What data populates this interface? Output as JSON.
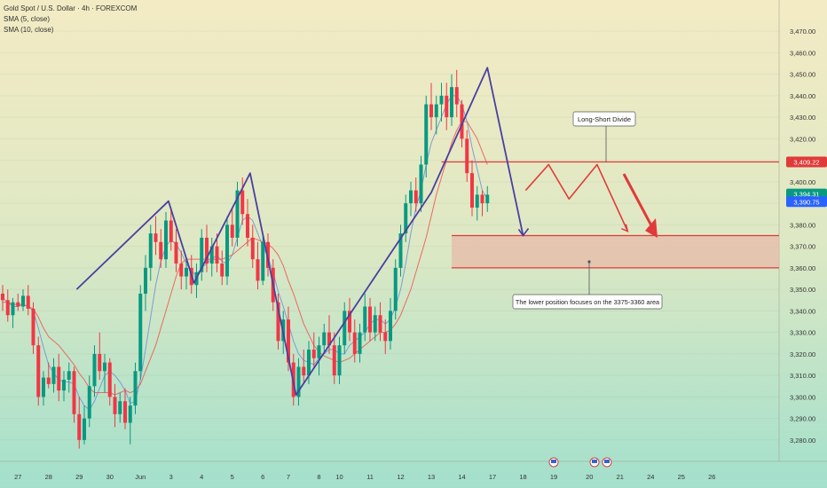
{
  "legend": {
    "symbol": "Gold Spot / U.S. Dollar · 4h · FOREXCOM",
    "sma5": "SMA (5, close)",
    "sma10": "SMA (10, close)"
  },
  "colors": {
    "bull": "#089981",
    "bear": "#f23645",
    "sma5": "#6f8fd8",
    "sma10": "#ef5350",
    "wave": "#4a3fa0",
    "projection": "#e03a3a",
    "divide_line": "#e03a3a",
    "zone_fill": "#e7b9a8",
    "zone_border": "#e03a3a",
    "bg_top": "#f3ebc4",
    "bg_bottom": "#a3e0cc"
  },
  "chart_data": {
    "type": "candlestick",
    "title": "Gold Spot / U.S. Dollar · 4h · FOREXCOM",
    "ylim": [
      3275,
      3475
    ],
    "y_ticks": [
      3280,
      3290,
      3300,
      3310,
      3320,
      3330,
      3340,
      3350,
      3360,
      3370,
      3380,
      3390,
      3400,
      3410,
      3420,
      3430,
      3440,
      3450,
      3460,
      3470
    ],
    "y_tick_labels": [
      "3,280.00",
      "3,290.00",
      "3,300.00",
      "3,310.00",
      "3,320.00",
      "3,330.00",
      "3,340.00",
      "3,350.00",
      "3,360.00",
      "3,370.00",
      "3,380.00",
      "3,390.00",
      "3,400.00",
      "3,410.00",
      "3,420.00",
      "3,430.00",
      "3,440.00",
      "3,450.00",
      "3,460.00",
      "3,470.00"
    ],
    "x_labels": [
      {
        "label": "27",
        "idx": 3
      },
      {
        "label": "28",
        "idx": 9
      },
      {
        "label": "29",
        "idx": 15
      },
      {
        "label": "30",
        "idx": 21
      },
      {
        "label": "Jun",
        "idx": 27
      },
      {
        "label": "3",
        "idx": 33
      },
      {
        "label": "4",
        "idx": 39
      },
      {
        "label": "5",
        "idx": 45
      },
      {
        "label": "6",
        "idx": 51
      },
      {
        "label": "7",
        "idx": 56
      },
      {
        "label": "8",
        "idx": 62
      },
      {
        "label": "10",
        "idx": 66
      },
      {
        "label": "11",
        "idx": 72
      },
      {
        "label": "12",
        "idx": 78
      },
      {
        "label": "13",
        "idx": 84
      },
      {
        "label": "14",
        "idx": 90
      },
      {
        "label": "17",
        "idx": 96
      },
      {
        "label": "18",
        "idx": 102
      },
      {
        "label": "19",
        "idx": 108
      },
      {
        "label": "20",
        "idx": 115
      },
      {
        "label": "21",
        "idx": 121
      },
      {
        "label": "24",
        "idx": 127
      },
      {
        "label": "25",
        "idx": 133
      },
      {
        "label": "26",
        "idx": 139
      }
    ],
    "candles": [
      [
        3348,
        3352,
        3340,
        3345
      ],
      [
        3345,
        3350,
        3335,
        3338
      ],
      [
        3338,
        3346,
        3332,
        3344
      ],
      [
        3344,
        3348,
        3340,
        3342
      ],
      [
        3342,
        3350,
        3340,
        3347
      ],
      [
        3347,
        3352,
        3338,
        3341
      ],
      [
        3341,
        3344,
        3320,
        3324
      ],
      [
        3324,
        3328,
        3296,
        3300
      ],
      [
        3300,
        3312,
        3296,
        3309
      ],
      [
        3309,
        3316,
        3304,
        3306
      ],
      [
        3306,
        3318,
        3302,
        3314
      ],
      [
        3314,
        3320,
        3298,
        3303
      ],
      [
        3303,
        3312,
        3298,
        3308
      ],
      [
        3308,
        3316,
        3302,
        3312
      ],
      [
        3312,
        3314,
        3288,
        3292
      ],
      [
        3292,
        3300,
        3276,
        3280
      ],
      [
        3280,
        3296,
        3278,
        3290
      ],
      [
        3290,
        3310,
        3286,
        3305
      ],
      [
        3305,
        3324,
        3300,
        3320
      ],
      [
        3320,
        3330,
        3308,
        3312
      ],
      [
        3312,
        3320,
        3302,
        3316
      ],
      [
        3316,
        3318,
        3296,
        3300
      ],
      [
        3300,
        3306,
        3286,
        3292
      ],
      [
        3292,
        3302,
        3288,
        3298
      ],
      [
        3298,
        3304,
        3285,
        3288
      ],
      [
        3288,
        3300,
        3278,
        3296
      ],
      [
        3296,
        3316,
        3292,
        3312
      ],
      [
        3312,
        3352,
        3308,
        3348
      ],
      [
        3348,
        3366,
        3340,
        3360
      ],
      [
        3360,
        3380,
        3354,
        3376
      ],
      [
        3376,
        3384,
        3366,
        3372
      ],
      [
        3372,
        3378,
        3360,
        3364
      ],
      [
        3364,
        3386,
        3360,
        3382
      ],
      [
        3382,
        3388,
        3368,
        3372
      ],
      [
        3372,
        3378,
        3358,
        3362
      ],
      [
        3362,
        3368,
        3350,
        3356
      ],
      [
        3356,
        3364,
        3350,
        3360
      ],
      [
        3360,
        3366,
        3348,
        3352
      ],
      [
        3352,
        3362,
        3346,
        3358
      ],
      [
        3358,
        3378,
        3354,
        3374
      ],
      [
        3374,
        3380,
        3358,
        3362
      ],
      [
        3362,
        3374,
        3356,
        3370
      ],
      [
        3370,
        3376,
        3358,
        3362
      ],
      [
        3362,
        3368,
        3352,
        3356
      ],
      [
        3356,
        3384,
        3352,
        3380
      ],
      [
        3380,
        3388,
        3370,
        3374
      ],
      [
        3374,
        3400,
        3370,
        3396
      ],
      [
        3396,
        3402,
        3380,
        3385
      ],
      [
        3385,
        3392,
        3370,
        3374
      ],
      [
        3374,
        3380,
        3360,
        3364
      ],
      [
        3364,
        3372,
        3350,
        3354
      ],
      [
        3354,
        3376,
        3352,
        3372
      ],
      [
        3372,
        3376,
        3356,
        3360
      ],
      [
        3360,
        3364,
        3340,
        3344
      ],
      [
        3344,
        3348,
        3322,
        3326
      ],
      [
        3326,
        3340,
        3320,
        3336
      ],
      [
        3336,
        3342,
        3312,
        3316
      ],
      [
        3316,
        3320,
        3296,
        3300
      ],
      [
        3300,
        3318,
        3296,
        3314
      ],
      [
        3314,
        3322,
        3306,
        3310
      ],
      [
        3310,
        3326,
        3306,
        3322
      ],
      [
        3322,
        3330,
        3314,
        3318
      ],
      [
        3318,
        3328,
        3310,
        3324
      ],
      [
        3324,
        3334,
        3320,
        3330
      ],
      [
        3330,
        3338,
        3320,
        3324
      ],
      [
        3324,
        3330,
        3306,
        3310
      ],
      [
        3310,
        3328,
        3306,
        3324
      ],
      [
        3324,
        3344,
        3320,
        3340
      ],
      [
        3340,
        3346,
        3326,
        3330
      ],
      [
        3330,
        3336,
        3316,
        3320
      ],
      [
        3320,
        3334,
        3316,
        3330
      ],
      [
        3330,
        3348,
        3326,
        3342
      ],
      [
        3342,
        3346,
        3326,
        3330
      ],
      [
        3330,
        3342,
        3326,
        3338
      ],
      [
        3338,
        3344,
        3326,
        3330
      ],
      [
        3330,
        3336,
        3320,
        3326
      ],
      [
        3326,
        3346,
        3322,
        3340
      ],
      [
        3340,
        3364,
        3336,
        3360
      ],
      [
        3360,
        3380,
        3356,
        3376
      ],
      [
        3376,
        3394,
        3372,
        3390
      ],
      [
        3390,
        3400,
        3384,
        3396
      ],
      [
        3396,
        3402,
        3386,
        3390
      ],
      [
        3390,
        3412,
        3386,
        3408
      ],
      [
        3408,
        3440,
        3402,
        3436
      ],
      [
        3436,
        3446,
        3424,
        3430
      ],
      [
        3430,
        3440,
        3422,
        3436
      ],
      [
        3436,
        3446,
        3428,
        3440
      ],
      [
        3440,
        3446,
        3424,
        3430
      ],
      [
        3430,
        3450,
        3426,
        3444
      ],
      [
        3444,
        3452,
        3430,
        3436
      ],
      [
        3436,
        3438,
        3416,
        3420
      ],
      [
        3420,
        3424,
        3400,
        3404
      ],
      [
        3404,
        3410,
        3384,
        3388
      ],
      [
        3388,
        3398,
        3382,
        3394
      ],
      [
        3394,
        3396,
        3384,
        3390
      ],
      [
        3390,
        3398,
        3386,
        3394
      ]
    ],
    "series": [
      {
        "name": "SMA (5, close)",
        "values": [
          3346,
          3344,
          3342,
          3342,
          3343,
          3342,
          3340,
          3332,
          3323,
          3315,
          3311,
          3308,
          3307,
          3307,
          3306,
          3300,
          3296,
          3294,
          3298,
          3304,
          3310,
          3312,
          3310,
          3307,
          3303,
          3297,
          3298,
          3308,
          3322,
          3337,
          3352,
          3363,
          3370,
          3373,
          3371,
          3367,
          3362,
          3358,
          3357,
          3360,
          3362,
          3364,
          3366,
          3363,
          3362,
          3366,
          3374,
          3382,
          3384,
          3382,
          3376,
          3370,
          3365,
          3358,
          3349,
          3342,
          3334,
          3326,
          3320,
          3317,
          3316,
          3315,
          3318,
          3320,
          3322,
          3322,
          3320,
          3320,
          3324,
          3326,
          3328,
          3330,
          3334,
          3336,
          3336,
          3334,
          3336,
          3342,
          3350,
          3362,
          3376,
          3388,
          3396,
          3408,
          3418,
          3424,
          3430,
          3436,
          3440,
          3440,
          3436,
          3428,
          3416,
          3406,
          3396,
          3392
        ]
      },
      {
        "name": "SMA (10, close)",
        "values": [
          3344,
          3344,
          3343,
          3343,
          3343,
          3342,
          3341,
          3337,
          3332,
          3328,
          3326,
          3324,
          3321,
          3318,
          3315,
          3311,
          3308,
          3304,
          3302,
          3302,
          3302,
          3302,
          3301,
          3302,
          3303,
          3302,
          3303,
          3306,
          3312,
          3318,
          3324,
          3332,
          3340,
          3348,
          3356,
          3362,
          3364,
          3364,
          3364,
          3364,
          3364,
          3364,
          3364,
          3364,
          3365,
          3366,
          3368,
          3370,
          3372,
          3374,
          3373,
          3372,
          3371,
          3369,
          3366,
          3361,
          3354,
          3348,
          3341,
          3334,
          3329,
          3324,
          3321,
          3319,
          3318,
          3317,
          3316,
          3317,
          3318,
          3320,
          3322,
          3324,
          3326,
          3328,
          3330,
          3330,
          3331,
          3334,
          3338,
          3344,
          3350,
          3358,
          3366,
          3374,
          3384,
          3394,
          3402,
          3410,
          3418,
          3424,
          3428,
          3428,
          3424,
          3420,
          3414,
          3408
        ]
      }
    ],
    "wave_points": [
      [
        14.5,
        3350
      ],
      [
        32.5,
        3391
      ],
      [
        37.5,
        3353
      ],
      [
        48.5,
        3404
      ],
      [
        57.5,
        3301
      ],
      [
        84,
        3395
      ],
      [
        95,
        3453
      ],
      [
        102,
        3375
      ]
    ],
    "projection": [
      [
        102.5,
        3396
      ],
      [
        107,
        3408
      ],
      [
        111,
        3392
      ],
      [
        116.5,
        3408
      ],
      [
        122.5,
        3377
      ]
    ],
    "current_price": {
      "value": 3394.31,
      "label": "3,394.31",
      "countdown": "01:00:20"
    },
    "bid_price": {
      "value": 3390.75,
      "label": "3,390.75"
    },
    "divide_price": {
      "value": 3409.22,
      "label": "3,409.22"
    },
    "zone": {
      "top": 3375,
      "bottom": 3360
    },
    "annotations": {
      "divide": "Long-Short Divide",
      "zone": "The lower position focuses on the 3375-3360 area"
    }
  }
}
